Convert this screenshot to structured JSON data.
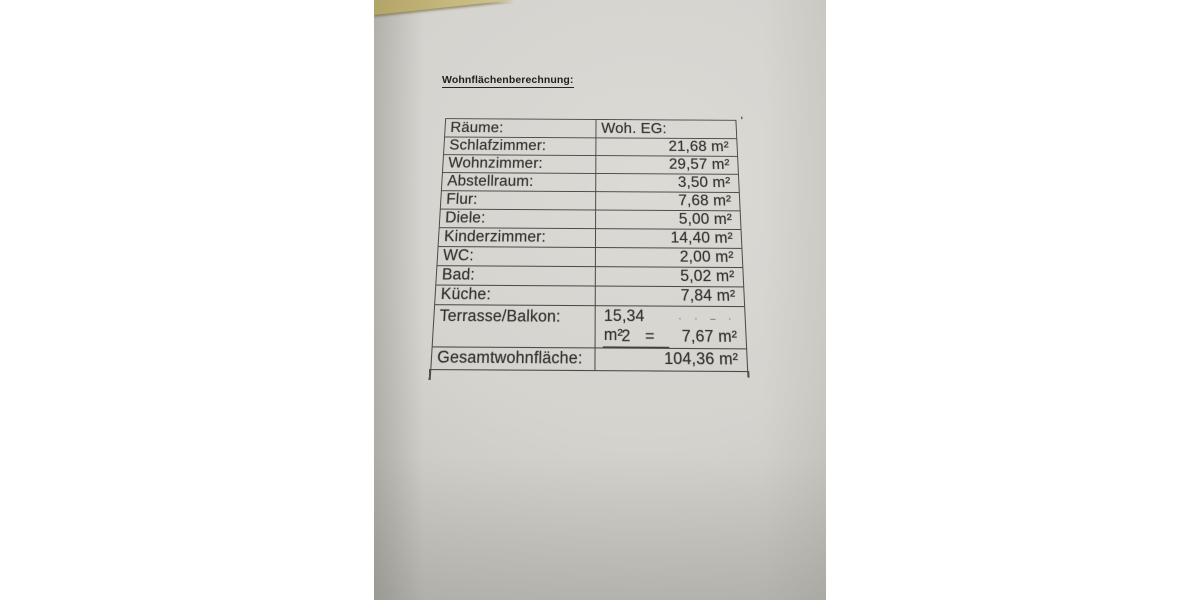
{
  "document": {
    "title": "Wohnflächenberechnung:",
    "table": {
      "header": {
        "rooms": "Räume:",
        "unit": "Woh. EG:"
      },
      "rows": [
        {
          "label": "Schlafzimmer:",
          "value": "21,68 m²"
        },
        {
          "label": "Wohnzimmer:",
          "value": "29,57 m²"
        },
        {
          "label": "Abstellraum:",
          "value": "3,50 m²"
        },
        {
          "label": "Flur:",
          "value": "7,68 m²"
        },
        {
          "label": "Diele:",
          "value": "5,00 m²"
        },
        {
          "label": "Kinderzimmer:",
          "value": "14,40 m²"
        },
        {
          "label": "WC:",
          "value": "2,00 m²"
        },
        {
          "label": "Bad:",
          "value": "5,02 m²"
        },
        {
          "label": "Küche:",
          "value": "7,84 m²"
        }
      ],
      "split_row": {
        "label": "Terrasse/Balkon:",
        "total": "15,34 m²",
        "divisor": "2",
        "equals_sign": "=",
        "half": "7,67 m²"
      },
      "total_row": {
        "label": "Gesamtwohnfläche:",
        "value": "104,36 m²"
      }
    },
    "pen_marks": {
      "corner_tick": "'",
      "faint_dots": "· ·  – ·"
    }
  },
  "colors": {
    "background": "#ffffff",
    "paper": "#d5d3ce",
    "paper_shadow": "#bfbdb7",
    "ink": "#34332f",
    "table_line": "#4b4a44",
    "desk_surface": "#c6b87e"
  }
}
